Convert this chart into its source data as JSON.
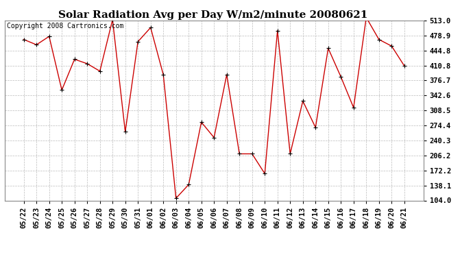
{
  "title": "Solar Radiation Avg per Day W/m2/minute 20080621",
  "copyright": "Copyright 2008 Cartronics.com",
  "x_labels": [
    "05/22",
    "05/23",
    "05/24",
    "05/25",
    "05/26",
    "05/27",
    "05/28",
    "05/29",
    "05/30",
    "05/31",
    "06/01",
    "06/02",
    "06/03",
    "06/04",
    "06/05",
    "06/06",
    "06/07",
    "06/08",
    "06/09",
    "06/10",
    "06/11",
    "06/12",
    "06/13",
    "06/14",
    "06/15",
    "06/16",
    "06/17",
    "06/18",
    "06/19",
    "06/20",
    "06/21"
  ],
  "y_values": [
    470,
    458,
    477,
    355,
    425,
    415,
    398,
    515,
    260,
    465,
    497,
    390,
    109,
    140,
    282,
    247,
    390,
    210,
    210,
    165,
    490,
    210,
    330,
    270,
    450,
    385,
    315,
    520,
    470,
    455,
    410
  ],
  "y_ticks": [
    104.0,
    138.1,
    172.2,
    206.2,
    240.3,
    274.4,
    308.5,
    342.6,
    376.7,
    410.8,
    444.8,
    478.9,
    513.0
  ],
  "line_color": "#cc0000",
  "marker": "+",
  "marker_color": "#000000",
  "background_color": "#ffffff",
  "grid_color": "#bbbbbb",
  "title_fontsize": 11,
  "copyright_fontsize": 7,
  "tick_fontsize": 7.5
}
